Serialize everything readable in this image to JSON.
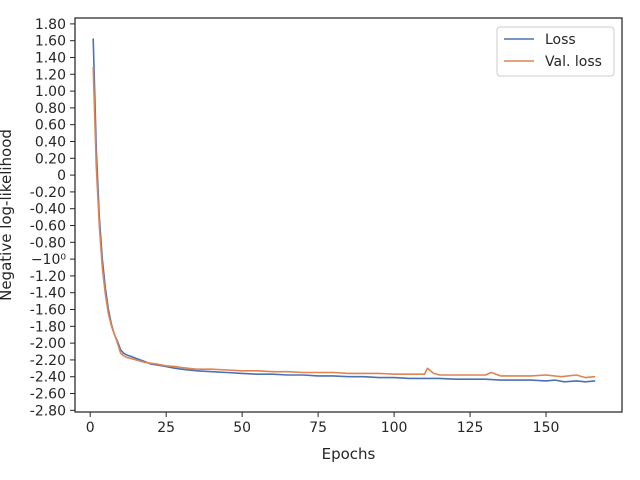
{
  "chart_data": {
    "type": "line",
    "xlabel": "Epochs",
    "ylabel": "Negative log-likelihood",
    "xlim": [
      -5,
      175
    ],
    "ylim": [
      -2.82,
      1.87
    ],
    "x_ticks": [
      0,
      25,
      50,
      75,
      100,
      125,
      150
    ],
    "y_ticks": [
      {
        "value": 1.8,
        "label": "1.80"
      },
      {
        "value": 1.6,
        "label": "1.60"
      },
      {
        "value": 1.4,
        "label": "1.40"
      },
      {
        "value": 1.2,
        "label": "1.20"
      },
      {
        "value": 1.0,
        "label": "1.00"
      },
      {
        "value": 0.8,
        "label": "0.80"
      },
      {
        "value": 0.6,
        "label": "0.60"
      },
      {
        "value": 0.4,
        "label": "0.40"
      },
      {
        "value": 0.2,
        "label": "0.20"
      },
      {
        "value": 0.0,
        "label": "0"
      },
      {
        "value": -0.2,
        "label": "-0.20"
      },
      {
        "value": -0.4,
        "label": "-0.40"
      },
      {
        "value": -0.6,
        "label": "-0.60"
      },
      {
        "value": -0.8,
        "label": "-0.80"
      },
      {
        "value": -1.0,
        "label": "−10⁰"
      },
      {
        "value": -1.2,
        "label": "-1.20"
      },
      {
        "value": -1.4,
        "label": "-1.40"
      },
      {
        "value": -1.6,
        "label": "-1.60"
      },
      {
        "value": -1.8,
        "label": "-1.80"
      },
      {
        "value": -2.0,
        "label": "-2.00"
      },
      {
        "value": -2.2,
        "label": "-2.20"
      },
      {
        "value": -2.4,
        "label": "-2.40"
      },
      {
        "value": -2.6,
        "label": "-2.60"
      },
      {
        "value": -2.8,
        "label": "-2.80"
      }
    ],
    "legend": {
      "position": "top-right"
    },
    "grid": false,
    "series": [
      {
        "name": "Loss",
        "color": "#4c72b0",
        "x": [
          1,
          2,
          3,
          4,
          5,
          6,
          7,
          8,
          9,
          10,
          11,
          12,
          15,
          18,
          20,
          22,
          25,
          28,
          30,
          35,
          40,
          45,
          50,
          55,
          60,
          65,
          70,
          75,
          80,
          85,
          90,
          95,
          100,
          105,
          110,
          115,
          120,
          125,
          130,
          135,
          140,
          145,
          150,
          153,
          156,
          160,
          163,
          166
        ],
        "y": [
          1.62,
          0.3,
          -0.5,
          -1.0,
          -1.35,
          -1.6,
          -1.78,
          -1.9,
          -1.98,
          -2.08,
          -2.12,
          -2.14,
          -2.18,
          -2.22,
          -2.25,
          -2.26,
          -2.28,
          -2.3,
          -2.31,
          -2.33,
          -2.34,
          -2.35,
          -2.36,
          -2.37,
          -2.37,
          -2.38,
          -2.38,
          -2.39,
          -2.39,
          -2.4,
          -2.4,
          -2.41,
          -2.41,
          -2.42,
          -2.42,
          -2.42,
          -2.43,
          -2.43,
          -2.43,
          -2.44,
          -2.44,
          -2.44,
          -2.45,
          -2.44,
          -2.46,
          -2.45,
          -2.46,
          -2.45
        ]
      },
      {
        "name": "Val. loss",
        "color": "#dd8452",
        "x": [
          1,
          2,
          3,
          4,
          5,
          6,
          7,
          8,
          9,
          10,
          11,
          12,
          15,
          18,
          20,
          22,
          25,
          28,
          30,
          35,
          40,
          45,
          50,
          55,
          60,
          65,
          70,
          75,
          80,
          85,
          90,
          95,
          100,
          105,
          110,
          111,
          113,
          115,
          120,
          125,
          130,
          132,
          135,
          140,
          145,
          150,
          155,
          160,
          163,
          166
        ],
        "y": [
          1.28,
          0.1,
          -0.6,
          -1.1,
          -1.42,
          -1.65,
          -1.8,
          -1.9,
          -2.0,
          -2.12,
          -2.15,
          -2.17,
          -2.2,
          -2.23,
          -2.24,
          -2.25,
          -2.27,
          -2.28,
          -2.29,
          -2.31,
          -2.31,
          -2.32,
          -2.33,
          -2.33,
          -2.34,
          -2.34,
          -2.35,
          -2.35,
          -2.35,
          -2.36,
          -2.36,
          -2.36,
          -2.37,
          -2.37,
          -2.37,
          -2.3,
          -2.36,
          -2.38,
          -2.38,
          -2.38,
          -2.38,
          -2.35,
          -2.39,
          -2.39,
          -2.39,
          -2.38,
          -2.4,
          -2.38,
          -2.41,
          -2.4
        ]
      }
    ]
  }
}
